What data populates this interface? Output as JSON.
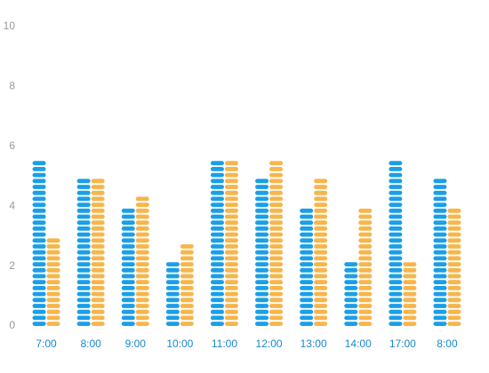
{
  "chart_data": {
    "type": "bar",
    "categories": [
      "7:00",
      "8:00",
      "9:00",
      "10:00",
      "11:00",
      "12:00",
      "13:00",
      "14:00",
      "17:00",
      "8:00"
    ],
    "series": [
      {
        "color": "#1a9fe8",
        "values": [
          5.5,
          5,
          4,
          2.2,
          5.5,
          5,
          4,
          2.2,
          5.5,
          5
        ]
      },
      {
        "color": "#f8b54a",
        "values": [
          3,
          5,
          4.5,
          2.8,
          5.5,
          5.5,
          5,
          4,
          2.2,
          4
        ]
      }
    ],
    "ylim": [
      0,
      10
    ],
    "yticks": [
      0,
      2,
      4,
      6,
      8,
      10
    ]
  }
}
